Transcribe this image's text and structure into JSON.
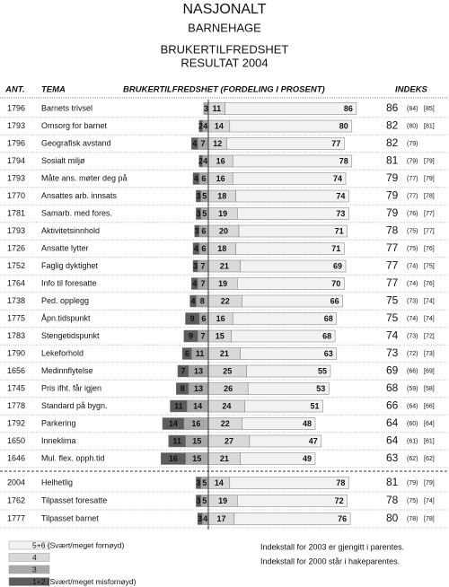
{
  "chart_data": {
    "type": "diverging-bar",
    "title_lines": [
      "NASJONALT",
      "BARNEHAGE",
      "BRUKERTILFREDSHET",
      "RESULTAT 2004"
    ],
    "columns": {
      "count": "ANT.",
      "topic": "TEMA",
      "distribution": "BRUKERTILFREDSHET (FORDELING I PROSENT)",
      "index": "INDEKS"
    },
    "series": [
      {
        "name": "1+2 (Svært/meget misfornøyd)",
        "color": "#5c5c5c"
      },
      {
        "name": "3",
        "color": "#a9a9a9"
      },
      {
        "name": "4",
        "color": "#d9d9d9"
      },
      {
        "name": "5+6 (Svært/meget fornøyd)",
        "color": "#f2f2f2"
      }
    ],
    "sections": [
      {
        "rows": [
          {
            "count": 1796,
            "topic": "Barnets trivsel",
            "values": [
              null,
              3,
              11,
              86
            ],
            "index": 86,
            "index_2003": {
              "value": 84,
              "label": "(84)"
            },
            "index_2000": {
              "value": 85,
              "label": "[85]"
            }
          },
          {
            "count": 1793,
            "topic": "Omsorg for barnet",
            "values": [
              2,
              4,
              14,
              80
            ],
            "index": 82,
            "index_2003": {
              "value": 80,
              "label": "(80)"
            },
            "index_2000": {
              "value": 81,
              "label": "[81]"
            }
          },
          {
            "count": 1796,
            "topic": "Geografisk avstand",
            "values": [
              4,
              7,
              12,
              77
            ],
            "index": 82,
            "index_2003": {
              "value": 79,
              "label": "(79)"
            },
            "index_2000": null
          },
          {
            "count": 1794,
            "topic": "Sosialt miljø",
            "values": [
              2,
              4,
              16,
              78
            ],
            "index": 81,
            "index_2003": {
              "value": 79,
              "label": "(79)"
            },
            "index_2000": {
              "value": 79,
              "label": "[79]"
            }
          },
          {
            "count": 1793,
            "topic": "Måte ans. møter deg på",
            "values": [
              4,
              6,
              16,
              74
            ],
            "index": 79,
            "index_2003": {
              "value": 77,
              "label": "(77)"
            },
            "index_2000": {
              "value": 79,
              "label": "[79]"
            }
          },
          {
            "count": 1770,
            "topic": "Ansattes arb. innsats",
            "values": [
              3,
              5,
              18,
              74
            ],
            "index": 79,
            "index_2003": {
              "value": 77,
              "label": "(77)"
            },
            "index_2000": {
              "value": 78,
              "label": "[78]"
            }
          },
          {
            "count": 1781,
            "topic": "Samarb. med fores.",
            "values": [
              3,
              5,
              19,
              73
            ],
            "index": 79,
            "index_2003": {
              "value": 76,
              "label": "(76)"
            },
            "index_2000": {
              "value": 77,
              "label": "[77]"
            }
          },
          {
            "count": 1793,
            "topic": "Aktivitetsinnhold",
            "values": [
              3,
              6,
              20,
              71
            ],
            "index": 78,
            "index_2003": {
              "value": 75,
              "label": "(75)"
            },
            "index_2000": {
              "value": 77,
              "label": "[77]"
            }
          },
          {
            "count": 1726,
            "topic": "Ansatte lytter",
            "values": [
              4,
              6,
              18,
              71
            ],
            "index": 77,
            "index_2003": {
              "value": 75,
              "label": "(75)"
            },
            "index_2000": {
              "value": 76,
              "label": "[76]"
            }
          },
          {
            "count": 1752,
            "topic": "Faglig dyktighet",
            "values": [
              3,
              7,
              21,
              69
            ],
            "index": 77,
            "index_2003": {
              "value": 74,
              "label": "(74)"
            },
            "index_2000": {
              "value": 75,
              "label": "[75]"
            }
          },
          {
            "count": 1764,
            "topic": "Info til foresatte",
            "values": [
              4,
              7,
              19,
              70
            ],
            "index": 77,
            "index_2003": {
              "value": 74,
              "label": "(74)"
            },
            "index_2000": {
              "value": 76,
              "label": "[76]"
            }
          },
          {
            "count": 1738,
            "topic": "Ped. opplegg",
            "values": [
              4,
              8,
              22,
              66
            ],
            "index": 75,
            "index_2003": {
              "value": 73,
              "label": "(73)"
            },
            "index_2000": {
              "value": 74,
              "label": "[74]"
            }
          },
          {
            "count": 1775,
            "topic": "Åpn.tidspunkt",
            "values": [
              9,
              6,
              16,
              68
            ],
            "index": 75,
            "index_2003": {
              "value": 74,
              "label": "(74)"
            },
            "index_2000": {
              "value": 74,
              "label": "[74]"
            }
          },
          {
            "count": 1783,
            "topic": "Stengetidspunkt",
            "values": [
              9,
              7,
              15,
              68
            ],
            "index": 74,
            "index_2003": {
              "value": 73,
              "label": "(73)"
            },
            "index_2000": {
              "value": 72,
              "label": "[72]"
            }
          },
          {
            "count": 1790,
            "topic": "Lekeforhold",
            "values": [
              6,
              11,
              21,
              63
            ],
            "index": 73,
            "index_2003": {
              "value": 72,
              "label": "(72)"
            },
            "index_2000": {
              "value": 73,
              "label": "[73]"
            }
          },
          {
            "count": 1656,
            "topic": "Medinnflytelse",
            "values": [
              7,
              13,
              25,
              55
            ],
            "index": 69,
            "index_2003": {
              "value": 66,
              "label": "(66)"
            },
            "index_2000": {
              "value": 69,
              "label": "[69]"
            }
          },
          {
            "count": 1745,
            "topic": "Pris ifht. får igjen",
            "values": [
              8,
              13,
              26,
              53
            ],
            "index": 68,
            "index_2003": {
              "value": 59,
              "label": "(59)"
            },
            "index_2000": {
              "value": 58,
              "label": "[58]"
            }
          },
          {
            "count": 1778,
            "topic": "Standard på bygn.",
            "values": [
              11,
              14,
              24,
              51
            ],
            "index": 66,
            "index_2003": {
              "value": 64,
              "label": "(64)"
            },
            "index_2000": {
              "value": 66,
              "label": "[66]"
            }
          },
          {
            "count": 1792,
            "topic": "Parkering",
            "values": [
              14,
              16,
              22,
              48
            ],
            "index": 64,
            "index_2003": {
              "value": 60,
              "label": "(60)"
            },
            "index_2000": {
              "value": 64,
              "label": "[64]"
            }
          },
          {
            "count": 1650,
            "topic": "Inneklima",
            "values": [
              11,
              15,
              27,
              47
            ],
            "index": 64,
            "index_2003": {
              "value": 61,
              "label": "(61)"
            },
            "index_2000": {
              "value": 61,
              "label": "[61]"
            }
          },
          {
            "count": 1646,
            "topic": "Mul. flex. opph.tid",
            "values": [
              16,
              15,
              21,
              49
            ],
            "index": 63,
            "index_2003": {
              "value": 62,
              "label": "(62)"
            },
            "index_2000": {
              "value": 62,
              "label": "[62]"
            }
          }
        ]
      },
      {
        "rows": [
          {
            "count": 2004,
            "topic": "Helhetlig",
            "values": [
              3,
              5,
              14,
              78
            ],
            "index": 81,
            "index_2003": {
              "value": 79,
              "label": "(79)"
            },
            "index_2000": {
              "value": 79,
              "label": "[79]"
            }
          },
          {
            "count": 1762,
            "topic": "Tilpasset foresatte",
            "values": [
              3,
              5,
              19,
              72
            ],
            "index": 78,
            "index_2003": {
              "value": 75,
              "label": "(75)"
            },
            "index_2000": {
              "value": 74,
              "label": "[74]"
            }
          },
          {
            "count": 1777,
            "topic": "Tilpasset barnet",
            "values": [
              3,
              4,
              17,
              76
            ],
            "index": 80,
            "index_2003": {
              "value": 78,
              "label": "(78)"
            },
            "index_2000": {
              "value": 78,
              "label": "[78]"
            }
          }
        ]
      }
    ],
    "notes": [
      "Indekstall for 2003 er gjengitt i parentes.",
      "Indekstall for 2000 står i hakeparentes."
    ]
  }
}
